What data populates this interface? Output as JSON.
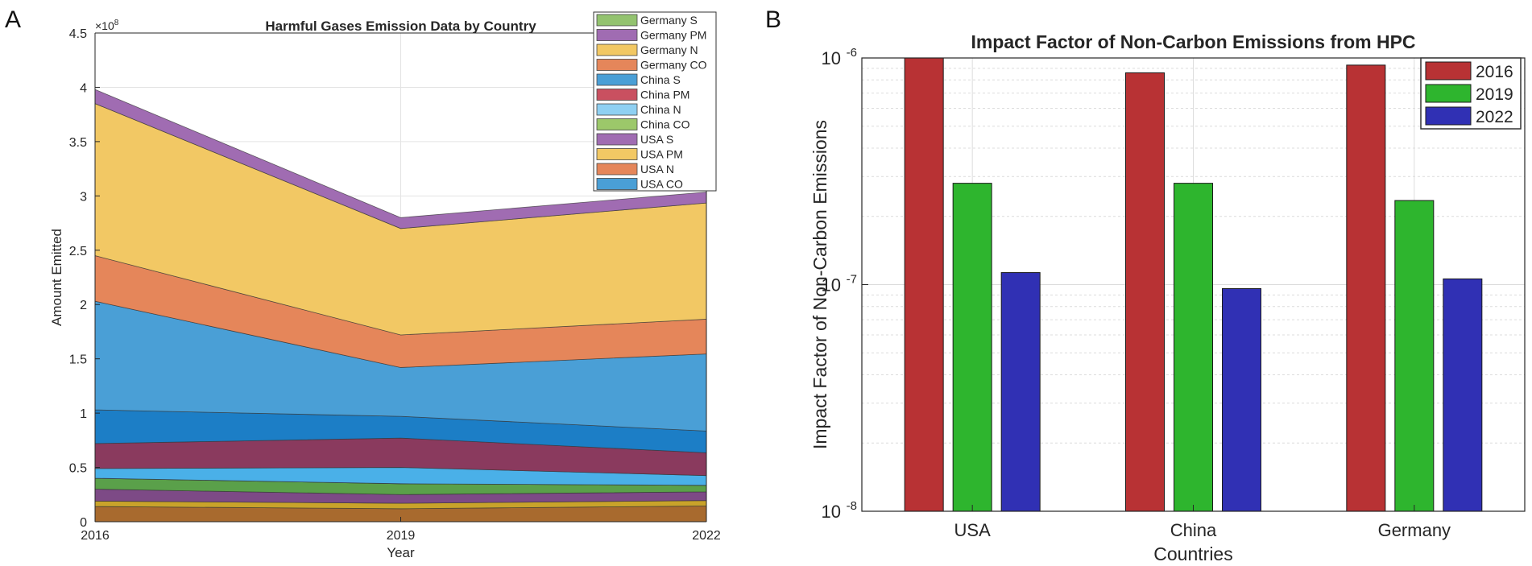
{
  "panels": {
    "a_letter": "A",
    "b_letter": "B"
  },
  "chart_data": [
    {
      "type": "area",
      "stacked": true,
      "title": "Harmful Gases Emission Data by Country",
      "xlabel": "Year",
      "ylabel": "Amount Emitted",
      "y_exponent_label": "×10^8",
      "exponent_base": "×10",
      "exponent_power": "8",
      "x": [
        2016,
        2019,
        2022
      ],
      "x_tick_labels": [
        "2016",
        "2019",
        "2022"
      ],
      "y_ticks": [
        0,
        0.5,
        1,
        1.5,
        2,
        2.5,
        3,
        3.5,
        4,
        4.5
      ],
      "y_tick_labels": [
        "0",
        "0.5",
        "1",
        "1.5",
        "2",
        "2.5",
        "3",
        "3.5",
        "4",
        "4.5"
      ],
      "ylim": [
        0,
        4.5
      ],
      "y_units": "1e8",
      "grid": true,
      "legend_position": "top-right",
      "series": [
        {
          "name": "USA CO",
          "values": [
            0.14,
            0.12,
            0.145
          ],
          "color": "#a86a2e"
        },
        {
          "name": "USA N",
          "values": [
            0.05,
            0.05,
            0.05
          ],
          "color": "#c9a32a"
        },
        {
          "name": "USA PM",
          "values": [
            0.11,
            0.08,
            0.08
          ],
          "color": "#7d4a86"
        },
        {
          "name": "USA S",
          "values": [
            0.1,
            0.1,
            0.06
          ],
          "color": "#5aa04a"
        },
        {
          "name": "China CO",
          "values": [
            0.0,
            0.0,
            0.0
          ],
          "color": "#9cc86a"
        },
        {
          "name": "China N",
          "values": [
            0.09,
            0.15,
            0.09
          ],
          "color": "#4ab0e8"
        },
        {
          "name": "China PM",
          "values": [
            0.23,
            0.27,
            0.21
          ],
          "color": "#8a3a5e"
        },
        {
          "name": "China S",
          "values": [
            0.31,
            0.2,
            0.2
          ],
          "color": "#1c7ec6"
        },
        {
          "name": "Germany CO",
          "values": [
            1.0,
            0.45,
            0.71
          ],
          "color": "#4a9fd6"
        },
        {
          "name": "Germany N",
          "values": [
            0.42,
            0.3,
            0.32
          ],
          "color": "#e5865a"
        },
        {
          "name": "Germany PM",
          "values": [
            1.4,
            0.98,
            1.07
          ],
          "color": "#f2c864"
        },
        {
          "name": "Germany S",
          "values": [
            0.13,
            0.1,
            0.1
          ],
          "color": "#a06cb2"
        }
      ],
      "legend": [
        {
          "name": "Germany S",
          "color": "#93c36f"
        },
        {
          "name": "Germany PM",
          "color": "#a06cb2"
        },
        {
          "name": "Germany N",
          "color": "#f2c864"
        },
        {
          "name": "Germany CO",
          "color": "#e5865a"
        },
        {
          "name": "China S",
          "color": "#4a9fd6"
        },
        {
          "name": "China PM",
          "color": "#c95060"
        },
        {
          "name": "China N",
          "color": "#8fd0f2"
        },
        {
          "name": "China CO",
          "color": "#9cc86a"
        },
        {
          "name": "USA S",
          "color": "#a06cb2"
        },
        {
          "name": "USA PM",
          "color": "#f2c864"
        },
        {
          "name": "USA N",
          "color": "#e5865a"
        },
        {
          "name": "USA CO",
          "color": "#4a9fd6"
        }
      ]
    },
    {
      "type": "bar",
      "title": "Impact Factor of Non-Carbon Emissions from HPC",
      "xlabel": "Countries",
      "ylabel": "Impact Factor of Non-Carbon Emissions",
      "y_scale": "log",
      "ylim": [
        1e-08,
        1e-06
      ],
      "y_tick_labels": [
        {
          "value": 1e-08,
          "base": "10",
          "exp": "-8"
        },
        {
          "value": 1e-07,
          "base": "10",
          "exp": "-7"
        },
        {
          "value": 1e-06,
          "base": "10",
          "exp": "-6"
        }
      ],
      "categories": [
        "USA",
        "China",
        "Germany"
      ],
      "grid": true,
      "legend_position": "top-right",
      "series": [
        {
          "name": "2016",
          "values": [
            1e-06,
            8.6e-07,
            9.3e-07
          ],
          "color": "#b83234"
        },
        {
          "name": "2019",
          "values": [
            2.8e-07,
            2.8e-07,
            2.35e-07
          ],
          "color": "#2eb52e"
        },
        {
          "name": "2022",
          "values": [
            1.13e-07,
            9.6e-08,
            1.06e-07
          ],
          "color": "#3030b4"
        }
      ]
    }
  ]
}
